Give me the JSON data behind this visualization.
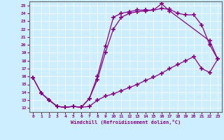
{
  "xlabel": "Windchill (Refroidissement éolien,°C)",
  "xlim": [
    -0.5,
    23.5
  ],
  "ylim": [
    11.5,
    25.5
  ],
  "xticks": [
    0,
    1,
    2,
    3,
    4,
    5,
    6,
    7,
    8,
    9,
    10,
    11,
    12,
    13,
    14,
    15,
    16,
    17,
    18,
    19,
    20,
    21,
    22,
    23
  ],
  "yticks": [
    12,
    13,
    14,
    15,
    16,
    17,
    18,
    19,
    20,
    21,
    22,
    23,
    24,
    25
  ],
  "line_color": "#880088",
  "bg_color": "#cceeff",
  "line1_x": [
    0,
    1,
    2,
    3,
    4,
    5,
    6,
    7,
    8,
    9,
    10,
    11,
    12,
    13,
    14,
    15,
    16,
    17,
    22,
    23
  ],
  "line1_y": [
    15.8,
    13.9,
    13.0,
    12.2,
    12.1,
    12.2,
    12.1,
    13.2,
    15.6,
    19.0,
    22.0,
    23.5,
    24.0,
    24.2,
    24.3,
    24.4,
    25.2,
    24.3,
    20.5,
    18.2
  ],
  "line2_x": [
    0,
    1,
    2,
    3,
    4,
    5,
    6,
    7,
    8,
    9,
    10,
    11,
    12,
    13,
    14,
    15,
    16,
    17,
    18,
    19,
    20,
    21,
    22,
    23
  ],
  "line2_y": [
    15.8,
    13.9,
    13.0,
    12.2,
    12.1,
    12.2,
    12.1,
    13.2,
    16.0,
    19.8,
    23.5,
    24.0,
    24.2,
    24.4,
    24.4,
    24.4,
    24.6,
    24.5,
    24.0,
    23.8,
    23.8,
    22.5,
    20.0,
    18.2
  ],
  "line3_x": [
    1,
    2,
    3,
    4,
    5,
    6,
    7,
    8,
    9,
    10,
    11,
    12,
    13,
    14,
    15,
    16,
    17,
    18,
    19,
    20,
    21,
    22,
    23
  ],
  "line3_y": [
    13.9,
    13.0,
    12.2,
    12.1,
    12.2,
    12.1,
    12.2,
    13.0,
    13.5,
    13.8,
    14.2,
    14.6,
    15.0,
    15.5,
    15.9,
    16.4,
    17.0,
    17.5,
    18.0,
    18.5,
    17.0,
    16.5,
    18.2
  ]
}
